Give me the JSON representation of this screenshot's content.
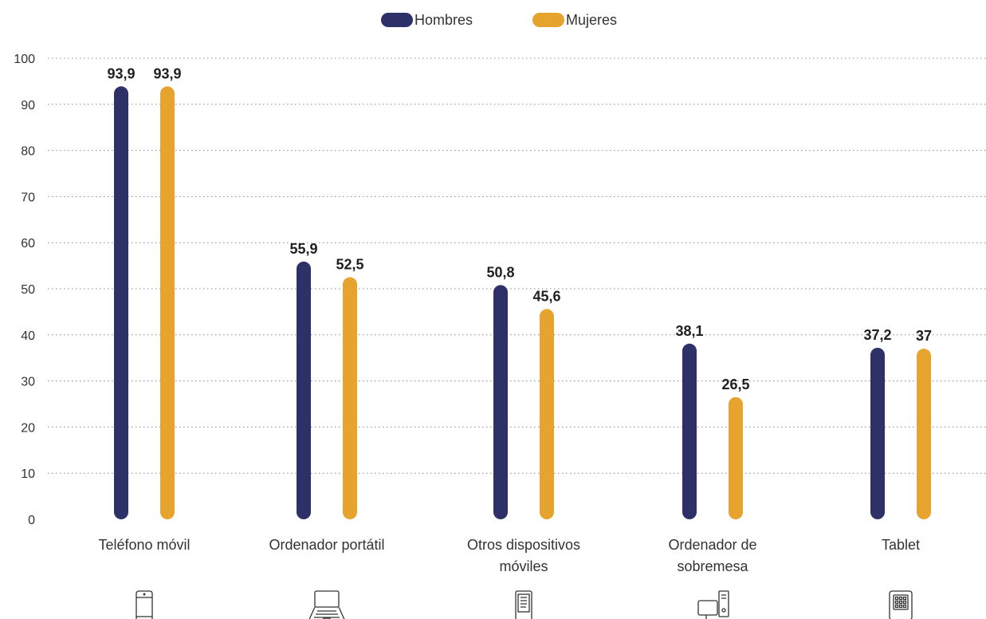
{
  "chart_data": {
    "type": "bar",
    "title": "",
    "xlabel": "",
    "ylabel": "",
    "ylim": [
      0,
      100
    ],
    "yticks": [
      0,
      10,
      20,
      30,
      40,
      50,
      60,
      70,
      80,
      90,
      100
    ],
    "grid": true,
    "legend_position": "top-center",
    "categories": [
      [
        "Teléfono móvil"
      ],
      [
        "Ordenador portátil"
      ],
      [
        "Otros dispositivos",
        "móviles"
      ],
      [
        "Ordenador de",
        "sobremesa"
      ],
      [
        "Tablet"
      ]
    ],
    "category_icons": [
      "smartphone-icon",
      "laptop-icon",
      "ebook-reader-icon",
      "desktop-computer-icon",
      "tablet-icon"
    ],
    "series": [
      {
        "name": "Hombres",
        "color": "#2e3168",
        "values": [
          93.9,
          55.9,
          50.8,
          38.1,
          37.2
        ],
        "labels": [
          "93,9",
          "55,9",
          "50,8",
          "38,1",
          "37,2"
        ]
      },
      {
        "name": "Mujeres",
        "color": "#e6a32e",
        "values": [
          93.9,
          52.5,
          45.6,
          26.5,
          37
        ],
        "labels": [
          "93,9",
          "52,5",
          "45,6",
          "26,5",
          "37"
        ]
      }
    ]
  }
}
